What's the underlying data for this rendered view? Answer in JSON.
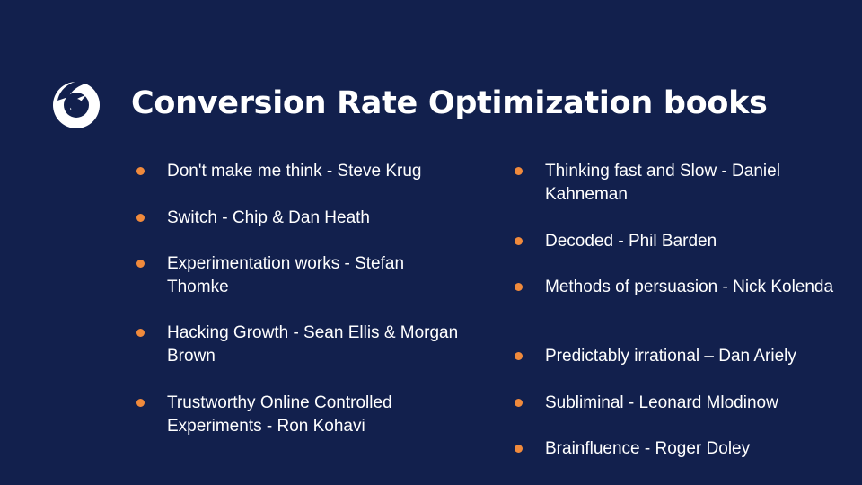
{
  "slide": {
    "title": "Conversion Rate Optimization books",
    "logo_icon": "brand-swirl-logo-icon",
    "accent_color": "#f08a3c",
    "background_color": "#12204d",
    "left_column": [
      "Don't make me think - Steve Krug",
      "Switch - Chip & Dan Heath",
      "Experimentation works - Stefan Thomke",
      "Hacking Growth - Sean Ellis & Morgan Brown",
      "Trustworthy Online Controlled Experiments - Ron Kohavi"
    ],
    "right_column": [
      "Thinking fast and Slow - Daniel Kahneman",
      "Decoded - Phil Barden",
      "Methods of persuasion - Nick Kolenda",
      "Predictably irrational – Dan Ariely",
      "Subliminal - Leonard Mlodinow",
      "Brainfluence - Roger Doley"
    ]
  }
}
